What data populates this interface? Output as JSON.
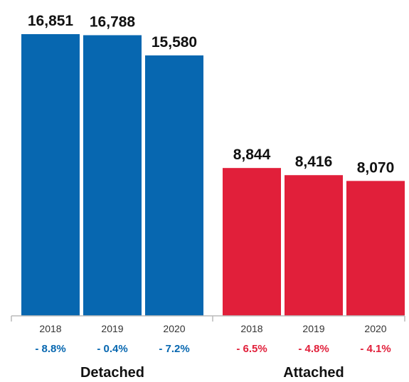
{
  "chart_data": {
    "type": "bar",
    "groups": [
      {
        "name": "Detached",
        "color": "#0767B0",
        "categories": [
          "2018",
          "2019",
          "2020"
        ],
        "values": [
          16851,
          16788,
          15580
        ],
        "value_labels": [
          "16,851",
          "16,788",
          "15,580"
        ],
        "changes": [
          "- 8.8%",
          "- 0.4%",
          "- 7.2%"
        ]
      },
      {
        "name": "Attached",
        "color": "#E11F3A",
        "categories": [
          "2018",
          "2019",
          "2020"
        ],
        "values": [
          8844,
          8416,
          8070
        ],
        "value_labels": [
          "8,844",
          "8,416",
          "8,070"
        ],
        "changes": [
          "- 6.5%",
          "- 4.8%",
          "- 4.1%"
        ]
      }
    ],
    "ylim": [
      0,
      16851
    ],
    "grid": false,
    "legend": "none"
  }
}
